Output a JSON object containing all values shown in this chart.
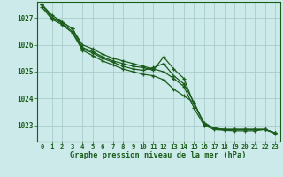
{
  "title": "Graphe pression niveau de la mer (hPa)",
  "bg_color": "#cceaea",
  "grid_color": "#aacccc",
  "line_color": "#1a5c1a",
  "x_ticks": [
    0,
    1,
    2,
    3,
    4,
    5,
    6,
    7,
    8,
    9,
    10,
    11,
    12,
    13,
    14,
    15,
    16,
    17,
    18,
    19,
    20,
    21,
    22,
    23
  ],
  "ylim": [
    1022.4,
    1027.6
  ],
  "y_ticks": [
    1023,
    1024,
    1025,
    1026,
    1027
  ],
  "series": [
    [
      1027.5,
      1027.1,
      1026.85,
      1026.6,
      1026.0,
      1025.85,
      1025.65,
      1025.5,
      1025.4,
      1025.3,
      1025.2,
      1025.1,
      1025.0,
      1024.75,
      1024.45,
      1023.65,
      1023.0,
      1022.85,
      1022.82,
      1022.8,
      1022.8,
      1022.8,
      1022.85,
      1022.7
    ],
    [
      1027.5,
      1027.0,
      1026.85,
      1026.6,
      1025.9,
      1025.75,
      1025.55,
      1025.4,
      1025.3,
      1025.2,
      1025.15,
      1025.05,
      1025.55,
      1025.1,
      1024.75,
      1023.8,
      1023.1,
      1022.9,
      1022.85,
      1022.85,
      1022.85,
      1022.85,
      1022.85,
      1022.72
    ],
    [
      1027.5,
      1027.0,
      1026.8,
      1026.5,
      1025.85,
      1025.7,
      1025.5,
      1025.35,
      1025.2,
      1025.1,
      1025.05,
      1025.15,
      1025.3,
      1024.85,
      1024.55,
      1023.85,
      1023.05,
      1022.9,
      1022.85,
      1022.85,
      1022.85,
      1022.85,
      1022.85,
      1022.72
    ],
    [
      1027.4,
      1026.95,
      1026.75,
      1026.45,
      1025.8,
      1025.6,
      1025.4,
      1025.25,
      1025.1,
      1025.0,
      1024.9,
      1024.85,
      1024.7,
      1024.35,
      1024.1,
      1023.85,
      1023.05,
      1022.9,
      1022.85,
      1022.85,
      1022.85,
      1022.85,
      1022.85,
      1022.72
    ]
  ]
}
